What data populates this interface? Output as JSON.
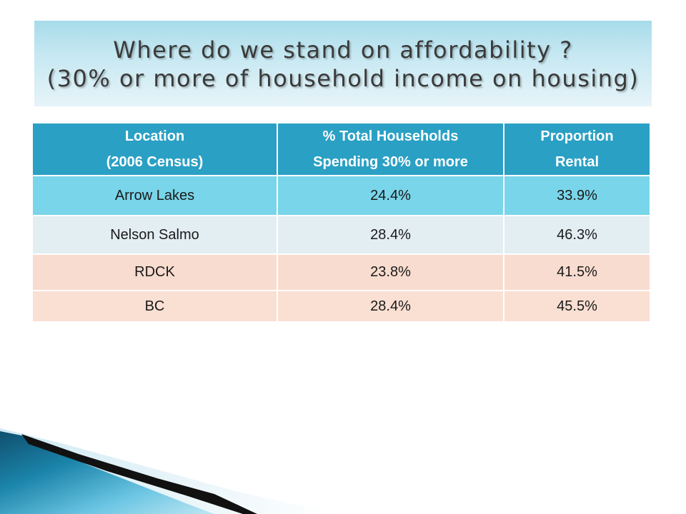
{
  "title": {
    "line1": "Where do we stand on affordability ?",
    "line2": "(30% or more of household income on housing)"
  },
  "table": {
    "headers": [
      [
        "Location",
        "(2006 Census)"
      ],
      [
        "% Total Households",
        "Spending 30% or more"
      ],
      [
        "Proportion",
        "Rental"
      ]
    ],
    "rows": [
      [
        "Arrow Lakes",
        "24.4%",
        "33.9%"
      ],
      [
        "Nelson Salmo",
        "28.4%",
        "46.3%"
      ],
      [
        "RDCK",
        "23.8%",
        "41.5%"
      ],
      [
        "BC",
        "28.4%",
        "45.5%"
      ]
    ]
  },
  "colors": {
    "header_bg": "#2aa0c4",
    "row1_bg": "#79d5ea",
    "row2_bg": "#e3eef3",
    "row3_bg": "#f8dccf",
    "row4_bg": "#fadfd3",
    "title_bg": "#c6e8f2"
  }
}
